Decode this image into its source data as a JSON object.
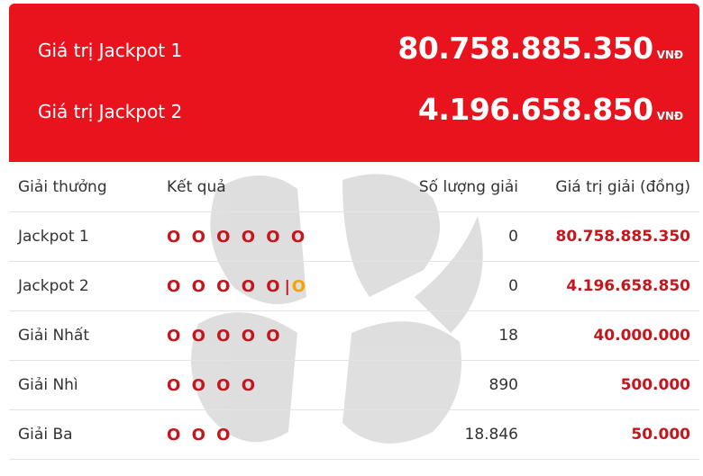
{
  "jackpots": [
    {
      "label": "Giá trị Jackpot 1",
      "value": "80.758.885.350",
      "currency": "VNĐ"
    },
    {
      "label": "Giá trị Jackpot 2",
      "value": "4.196.658.850",
      "currency": "VNĐ"
    }
  ],
  "table": {
    "headers": [
      "Giải thưởng",
      "Kết quả",
      "Số lượng giải",
      "Giá trị giải (đồng)"
    ],
    "rows": [
      {
        "name": "Jackpot 1",
        "result": "O O O O O O",
        "separator": "",
        "special": "",
        "count": "0",
        "value": "80.758.885.350"
      },
      {
        "name": "Jackpot 2",
        "result": "O O O O O",
        "separator": "|",
        "special": "O",
        "count": "0",
        "value": "4.196.658.850"
      },
      {
        "name": "Giải Nhất",
        "result": "O O O O O",
        "separator": "",
        "special": "",
        "count": "18",
        "value": "40.000.000"
      },
      {
        "name": "Giải Nhì",
        "result": "O O O O",
        "separator": "",
        "special": "",
        "count": "890",
        "value": "500.000"
      },
      {
        "name": "Giải Ba",
        "result": "O O O",
        "separator": "",
        "special": "",
        "count": "18.846",
        "value": "50.000"
      }
    ]
  },
  "colors": {
    "banner": "#e8131c",
    "accent": "#c4161c",
    "special": "#f5a300"
  }
}
